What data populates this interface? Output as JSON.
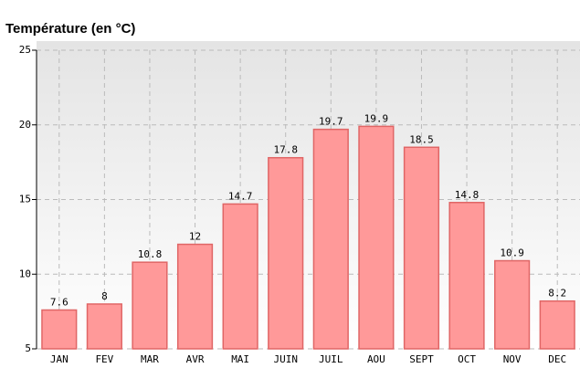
{
  "chart_data": {
    "type": "bar",
    "title": "Température (en °C)",
    "categories": [
      "JAN",
      "FEV",
      "MAR",
      "AVR",
      "MAI",
      "JUIN",
      "JUIL",
      "AOU",
      "SEPT",
      "OCT",
      "NOV",
      "DEC"
    ],
    "values": [
      7.6,
      8,
      10.8,
      12,
      14.7,
      17.8,
      19.7,
      19.9,
      18.5,
      14.8,
      10.9,
      8.2
    ],
    "color": "#ff9999",
    "ylim": [
      5,
      25
    ],
    "yticks": [
      5,
      10,
      15,
      20,
      25
    ],
    "grid": true
  }
}
